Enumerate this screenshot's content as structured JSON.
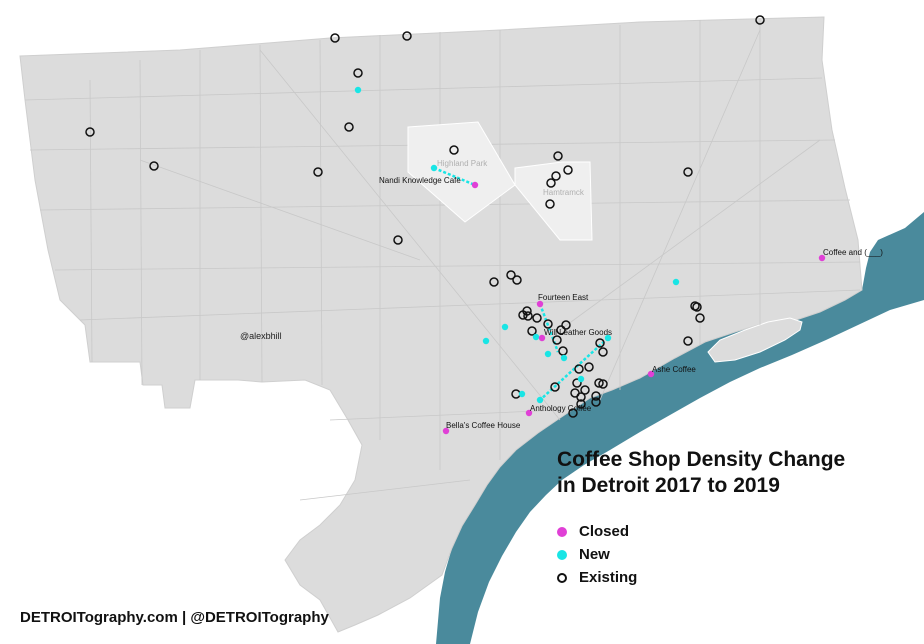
{
  "title_line1": "Coffee Shop Density Change",
  "title_line2": "in Detroit 2017 to 2019",
  "legend": [
    {
      "key": "closed",
      "label": "Closed"
    },
    {
      "key": "new",
      "label": "New"
    },
    {
      "key": "existing",
      "label": "Existing"
    }
  ],
  "colors": {
    "closed": "#e040d6",
    "new": "#19e5e5",
    "existing": "#111111",
    "land": "#dcdcdc",
    "enclave": "#efefef",
    "water": "#4a8a9c"
  },
  "credit": "DETROITography.com | @DETROITography",
  "handle": "@alexbhill",
  "enclaves": [
    "Highland Park",
    "Hamtramck"
  ],
  "shop_labels": [
    "Nandi Knowledge Cafe",
    "Fourteen East",
    "Will Leather Goods",
    "Ashe Coffee",
    "Anthology Coffee",
    "Bella's Coffee House",
    "Coffee and (___)"
  ]
}
